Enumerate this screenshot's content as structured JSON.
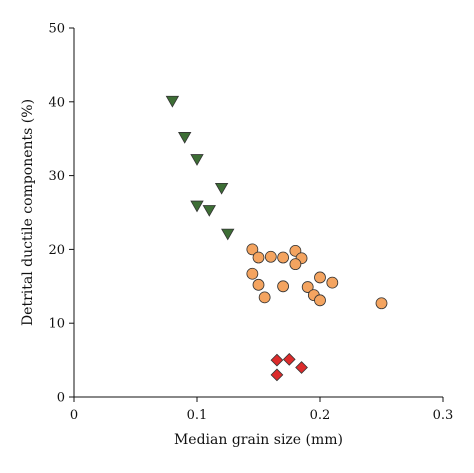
{
  "chart_data": {
    "type": "scatter",
    "xlabel": "Median grain size (mm)",
    "ylabel": "Detrital ductile components (%)",
    "xlim": [
      0,
      0.3
    ],
    "ylim": [
      0,
      50
    ],
    "xticks": [
      0,
      0.1,
      0.2,
      0.3
    ],
    "xtick_labels": [
      "0",
      "0.1",
      "0.2",
      "0.3"
    ],
    "yticks": [
      0,
      10,
      20,
      30,
      40,
      50
    ],
    "ytick_labels": [
      "0",
      "10",
      "20",
      "30",
      "40",
      "50"
    ],
    "grid": false,
    "legend": "none",
    "series": [
      {
        "marker": "triangle-down",
        "color": "#3d6e35",
        "points": [
          [
            0.08,
            40.1
          ],
          [
            0.09,
            35.2
          ],
          [
            0.1,
            32.2
          ],
          [
            0.12,
            28.3
          ],
          [
            0.1,
            25.9
          ],
          [
            0.11,
            25.3
          ],
          [
            0.125,
            22.1
          ]
        ]
      },
      {
        "marker": "circle",
        "color": "#f4a460",
        "points": [
          [
            0.145,
            20.0
          ],
          [
            0.15,
            18.9
          ],
          [
            0.16,
            19.0
          ],
          [
            0.17,
            18.9
          ],
          [
            0.18,
            19.8
          ],
          [
            0.185,
            18.8
          ],
          [
            0.18,
            18.0
          ],
          [
            0.145,
            16.7
          ],
          [
            0.15,
            15.2
          ],
          [
            0.155,
            13.5
          ],
          [
            0.17,
            15.0
          ],
          [
            0.19,
            14.9
          ],
          [
            0.195,
            13.8
          ],
          [
            0.2,
            13.1
          ],
          [
            0.2,
            16.2
          ],
          [
            0.21,
            15.5
          ],
          [
            0.25,
            12.7
          ]
        ]
      },
      {
        "marker": "diamond",
        "color": "#dc2b2b",
        "points": [
          [
            0.165,
            5.0
          ],
          [
            0.175,
            5.1
          ],
          [
            0.165,
            3.0
          ],
          [
            0.185,
            4.0
          ]
        ]
      }
    ]
  }
}
